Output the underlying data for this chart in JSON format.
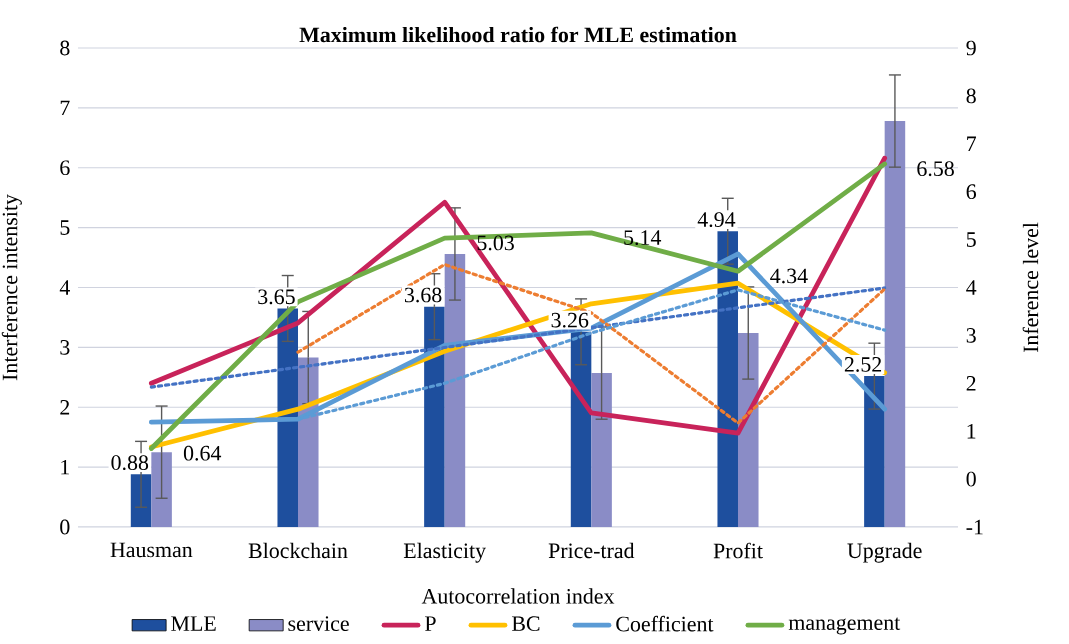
{
  "chart_data": {
    "type": "bar",
    "title": "Maximum likelihood ratio for MLE estimation",
    "xlabel": "Autocorrelation index",
    "ylabel": "Interference intensity",
    "y2label": "Inference level",
    "categories": [
      "Hausman",
      "Blockchain",
      "Elasticity",
      "Price-trad",
      "Profit",
      "Upgrade"
    ],
    "ylim": [
      0,
      8
    ],
    "yticks": [
      0,
      1,
      2,
      3,
      4,
      5,
      6,
      7,
      8
    ],
    "y2lim": [
      -1,
      9
    ],
    "y2ticks": [
      -1,
      0,
      1,
      2,
      3,
      4,
      5,
      6,
      7,
      8,
      9
    ],
    "grid": "y",
    "legend": "bottom",
    "series": [
      {
        "name": "MLE",
        "color": "#1e4f9e",
        "values": [
          0.88,
          3.65,
          3.68,
          3.26,
          4.94,
          2.52
        ],
        "errors": [
          0.55,
          0.55,
          0.55,
          0.55,
          0.55,
          0.55
        ],
        "value_labels": [
          "0.88",
          "3.65",
          "3.68",
          "3.26",
          "4.94",
          "2.52"
        ]
      },
      {
        "name": "service",
        "color": "#8a8cc6",
        "values": [
          1.25,
          2.83,
          4.56,
          2.57,
          3.24,
          6.78
        ],
        "errors": [
          0.77,
          0.77,
          0.77,
          0.77,
          0.77,
          0.77
        ]
      },
      {
        "name": "P",
        "type": "line",
        "axis": "y2",
        "color": "#c8235a",
        "values": [
          2.0,
          3.26,
          5.78,
          1.38,
          0.96,
          6.7
        ]
      },
      {
        "name": "BC",
        "type": "line",
        "axis": "y2",
        "color": "#ffc000",
        "values": [
          0.67,
          1.46,
          2.67,
          3.66,
          4.09,
          2.22
        ]
      },
      {
        "name": "Coefficient",
        "type": "line",
        "axis": "y2",
        "color": "#5b9bd5",
        "values": [
          1.19,
          1.25,
          2.79,
          3.15,
          4.7,
          1.46
        ]
      },
      {
        "name": "management",
        "type": "line",
        "axis": "y2",
        "color": "#70ad47",
        "values": [
          0.64,
          3.7,
          5.03,
          5.14,
          4.34,
          6.58
        ],
        "value_labels": [
          "0.64",
          null,
          "5.03",
          "5.14",
          "4.34",
          "6.58"
        ]
      },
      {
        "type": "line",
        "axis": "y2",
        "color": "#4472c4",
        "line_style": "dotted",
        "values": [
          1.92,
          null,
          null,
          null,
          null,
          3.99
        ]
      },
      {
        "type": "line",
        "axis": "y2",
        "color": "#ed7d31",
        "line_style": "dotted",
        "values": [
          null,
          2.65,
          4.48,
          3.47,
          1.17,
          3.97
        ]
      },
      {
        "type": "line",
        "axis": "y2",
        "color": "#5b9bd5",
        "line_style": "dotted",
        "values": [
          null,
          1.25,
          2.0,
          3.05,
          3.95,
          3.11
        ]
      }
    ]
  }
}
